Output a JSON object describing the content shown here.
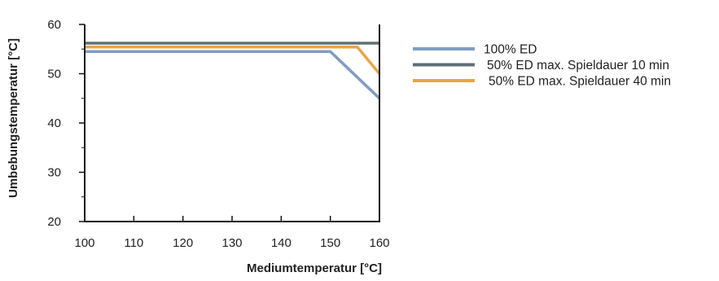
{
  "chart_data": {
    "type": "line",
    "title": "",
    "xlabel": "Mediumtemperatur [°C]",
    "ylabel": "Umbebungstemperatur [°C]",
    "xlim": [
      100,
      160
    ],
    "ylim": [
      20,
      60
    ],
    "xticks": [
      100,
      110,
      120,
      130,
      140,
      150,
      160
    ],
    "yticks": [
      20,
      30,
      40,
      50,
      60
    ],
    "y_minor_ticks": [
      25,
      35,
      45,
      55
    ],
    "grid": false,
    "legend_position": "right",
    "series": [
      {
        "name": "100% ED",
        "color": "#7f9cc3",
        "points": [
          [
            100,
            54.5
          ],
          [
            150,
            54.5
          ],
          [
            160,
            45
          ]
        ]
      },
      {
        "name": "50% ED max. Spieldauer 10 min",
        "color": "#5f7075",
        "points": [
          [
            100,
            56.2
          ],
          [
            160,
            56.2
          ]
        ]
      },
      {
        "name": "50% ED max. Spieldauer 40 min",
        "color": "#e8a545",
        "points": [
          [
            100,
            55.4
          ],
          [
            155.5,
            55.4
          ],
          [
            160,
            50
          ]
        ]
      }
    ]
  }
}
